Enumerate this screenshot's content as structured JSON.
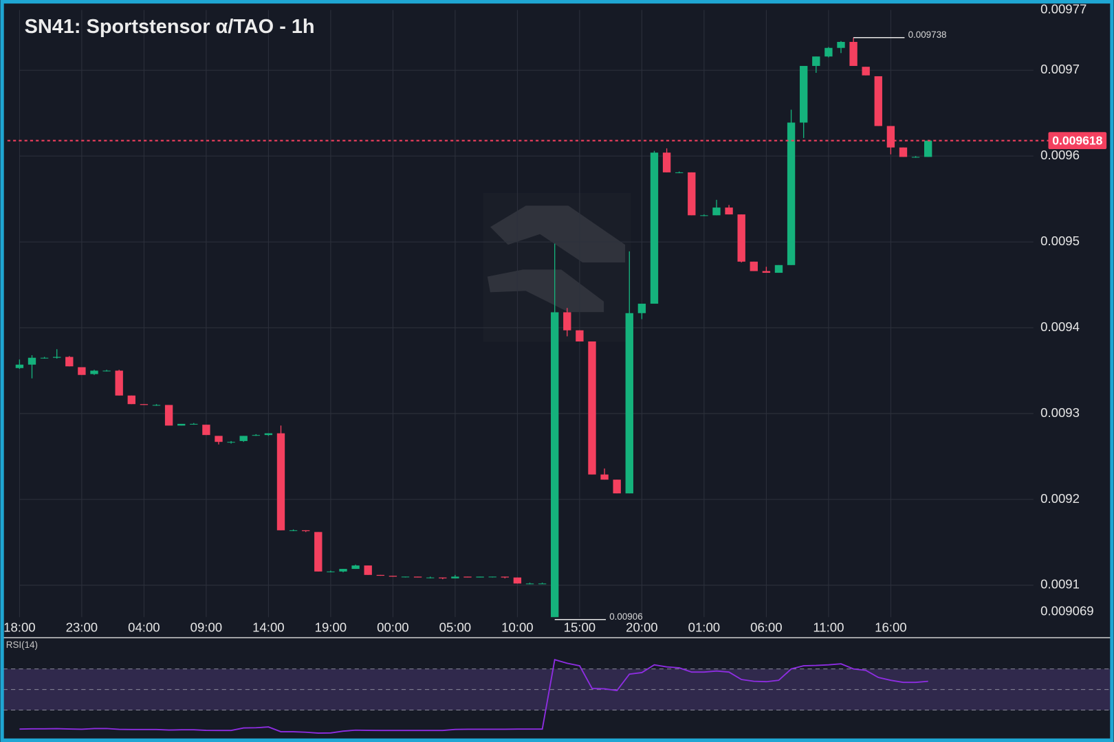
{
  "chart_data": {
    "type": "candlestick",
    "title": "SN41: Sportstensor α/TAO - 1h",
    "x": [
      "18:00",
      null,
      null,
      null,
      null,
      "23:00",
      null,
      null,
      null,
      null,
      "04:00",
      null,
      null,
      null,
      null,
      "09:00",
      null,
      null,
      null,
      null,
      "14:00",
      null,
      null,
      null,
      null,
      "19:00",
      null,
      null,
      null,
      null,
      "00:00",
      null,
      null,
      null,
      null,
      "05:00",
      null,
      null,
      null,
      null,
      "10:00",
      null,
      null,
      null,
      null,
      "15:00",
      null,
      null,
      null,
      null,
      "20:00",
      null,
      null,
      null,
      null,
      "01:00",
      null,
      null,
      null,
      null,
      "06:00",
      null,
      null,
      null,
      null,
      "11:00",
      null,
      null,
      null,
      null,
      "16:00",
      null,
      null,
      null
    ],
    "open": [
      0.009353,
      0.009357,
      0.009365,
      0.009365,
      0.009366,
      0.009354,
      0.009346,
      0.00935,
      0.00935,
      0.009321,
      0.009311,
      0.00931,
      0.00931,
      0.009286,
      0.009288,
      0.009287,
      0.009274,
      0.009267,
      0.009268,
      0.009275,
      0.009275,
      0.009277,
      0.009164,
      0.009164,
      0.009162,
      0.009116,
      0.009116,
      0.009119,
      0.009123,
      0.009112,
      0.009111,
      0.00911,
      0.00911,
      0.009109,
      0.009109,
      0.009108,
      0.00911,
      0.009109,
      0.00911,
      0.00911,
      0.009109,
      0.009102,
      0.009102,
      0.00906,
      0.009418,
      0.009397,
      0.009384,
      0.009229,
      0.009223,
      0.009207,
      0.009417,
      0.009428,
      0.009604,
      0.009581,
      0.009581,
      0.009531,
      0.009531,
      0.00954,
      0.009532,
      0.009477,
      0.009466,
      0.009464,
      0.009473,
      0.009639,
      0.009705,
      0.009716,
      0.009726,
      0.009733,
      0.009704,
      0.009693,
      0.009635,
      0.00961,
      0.009599,
      0.009599
    ],
    "high": [
      0.009363,
      0.009368,
      0.009366,
      0.009375,
      0.009367,
      0.009354,
      0.009351,
      0.009351,
      0.009351,
      0.009321,
      0.009311,
      0.009311,
      0.00931,
      0.009288,
      0.009289,
      0.009287,
      0.009274,
      0.009268,
      0.009274,
      0.009276,
      0.009277,
      0.009286,
      0.009165,
      0.009164,
      0.009162,
      0.009117,
      0.009119,
      0.009124,
      0.009123,
      0.009112,
      0.009111,
      0.00911,
      0.00911,
      0.00911,
      0.009109,
      0.009112,
      0.00911,
      0.00911,
      0.00911,
      0.00911,
      0.009109,
      0.009103,
      0.009103,
      0.009498,
      0.009423,
      0.009397,
      0.009384,
      0.009236,
      0.009223,
      0.009489,
      0.009428,
      0.009606,
      0.009609,
      0.009582,
      0.009581,
      0.009532,
      0.009549,
      0.009543,
      0.009532,
      0.009477,
      0.009471,
      0.009473,
      0.009654,
      0.009705,
      0.009716,
      0.009727,
      0.009734,
      0.009738,
      0.009704,
      0.009693,
      0.009635,
      0.00961,
      0.0096,
      0.009619
    ],
    "low": [
      0.009352,
      0.009341,
      0.009364,
      0.009364,
      0.009355,
      0.009345,
      0.009345,
      0.009349,
      0.009321,
      0.009311,
      0.00931,
      0.009309,
      0.009286,
      0.009286,
      0.009287,
      0.009275,
      0.009264,
      0.009265,
      0.009267,
      0.009274,
      0.009274,
      0.009164,
      0.009163,
      0.009162,
      0.009116,
      0.009115,
      0.009115,
      0.009119,
      0.009112,
      0.009111,
      0.00911,
      0.009109,
      0.009109,
      0.009108,
      0.009107,
      0.009108,
      0.009109,
      0.009109,
      0.009109,
      0.009108,
      0.009102,
      0.009101,
      0.009102,
      0.00906,
      0.00939,
      0.009384,
      0.009229,
      0.009223,
      0.009207,
      0.009207,
      0.00941,
      0.009428,
      0.009581,
      0.00958,
      0.009531,
      0.00953,
      0.009531,
      0.009532,
      0.009476,
      0.009466,
      0.009464,
      0.009464,
      0.009473,
      0.009621,
      0.009697,
      0.009715,
      0.00972,
      0.009705,
      0.009694,
      0.009635,
      0.009602,
      0.009599,
      0.009598,
      0.009599
    ],
    "close": [
      0.009357,
      0.009365,
      0.009365,
      0.009366,
      0.009355,
      0.009345,
      0.00935,
      0.00935,
      0.009321,
      0.009311,
      0.00931,
      0.00931,
      0.009286,
      0.009288,
      0.009288,
      0.009275,
      0.009267,
      0.009267,
      0.009274,
      0.009275,
      0.009277,
      0.009164,
      0.009164,
      0.009163,
      0.009116,
      0.009116,
      0.009119,
      0.009123,
      0.009112,
      0.009111,
      0.00911,
      0.00911,
      0.009109,
      0.009109,
      0.009108,
      0.00911,
      0.009109,
      0.00911,
      0.00911,
      0.009109,
      0.009102,
      0.009102,
      0.009102,
      0.009418,
      0.009397,
      0.009384,
      0.009229,
      0.009223,
      0.009207,
      0.009417,
      0.009428,
      0.009604,
      0.009581,
      0.009581,
      0.009531,
      0.009531,
      0.00954,
      0.009532,
      0.009477,
      0.009466,
      0.009464,
      0.009473,
      0.009639,
      0.009705,
      0.009716,
      0.009726,
      0.009733,
      0.009705,
      0.009694,
      0.009635,
      0.00961,
      0.009599,
      0.009599,
      0.009618
    ],
    "up_color": "#15b27c",
    "down_color": "#f4405f",
    "ylim": [
      0.009069,
      0.00977
    ],
    "yticks": [
      0.009069,
      0.0091,
      0.0092,
      0.0093,
      0.0094,
      0.0095,
      0.0096,
      0.0097,
      0.00977
    ],
    "grid": true,
    "rsi": {
      "label": "RSI(14)",
      "color": "#8e2de2",
      "ylim": [
        0,
        100
      ],
      "levels": [
        30,
        50,
        70
      ],
      "values": [
        11.5,
        11.8,
        11.8,
        11.9,
        11.6,
        11.4,
        12.0,
        12.1,
        11.3,
        11.1,
        11.1,
        11.1,
        10.6,
        10.8,
        10.9,
        10.3,
        10.2,
        10.2,
        12.6,
        12.8,
        13.6,
        9.0,
        9.0,
        8.5,
        7.6,
        7.8,
        9.5,
        10.5,
        10.3,
        10.2,
        10.2,
        10.2,
        10.2,
        10.2,
        10.2,
        11.2,
        11.4,
        11.4,
        11.4,
        11.4,
        11.5,
        11.5,
        11.5,
        79,
        75.5,
        73,
        51,
        50.7,
        49,
        65,
        66.5,
        74,
        72,
        71,
        67,
        67,
        68,
        67,
        59.7,
        58,
        57.6,
        59,
        70,
        73,
        73.4,
        74,
        75,
        70,
        68.6,
        61.7,
        59,
        57,
        57,
        58
      ]
    }
  }
}
